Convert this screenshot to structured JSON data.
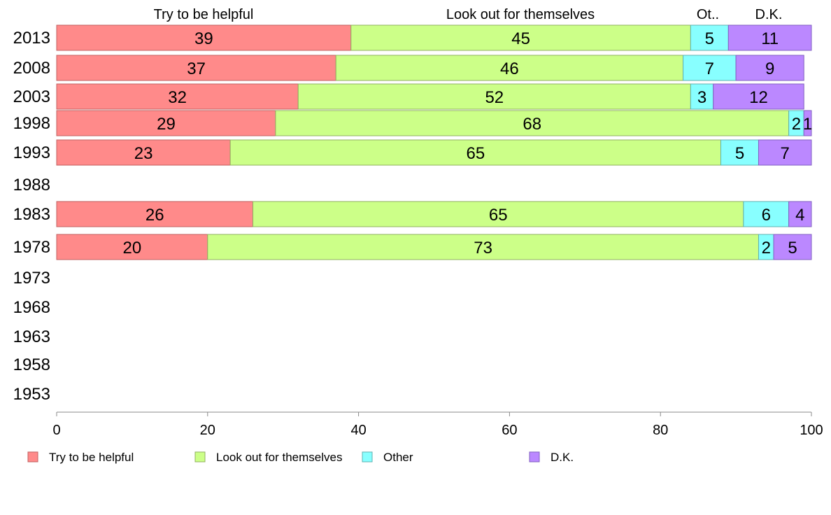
{
  "chart_data": {
    "type": "bar",
    "orientation": "horizontal",
    "stacked": true,
    "categories": [
      "2013",
      "2008",
      "2003",
      "1998",
      "1993",
      "1988",
      "1983",
      "1978",
      "1973",
      "1968",
      "1963",
      "1958",
      "1953"
    ],
    "series": [
      {
        "name": "Try to be helpful",
        "color": "#ff8a8a",
        "values": [
          39,
          37,
          32,
          29,
          23,
          null,
          26,
          20,
          null,
          null,
          null,
          null,
          null
        ]
      },
      {
        "name": "Look out for themselves",
        "color": "#ccff88",
        "values": [
          45,
          46,
          52,
          68,
          65,
          null,
          65,
          73,
          null,
          null,
          null,
          null,
          null
        ]
      },
      {
        "name": "Other",
        "color": "#88ffff",
        "values": [
          5,
          7,
          3,
          2,
          5,
          null,
          6,
          2,
          null,
          null,
          null,
          null,
          null
        ]
      },
      {
        "name": "D.K.",
        "color": "#bb88ff",
        "values": [
          11,
          9,
          12,
          1,
          7,
          null,
          4,
          5,
          null,
          null,
          null,
          null,
          null
        ]
      }
    ],
    "column_headers": [
      "Try to be helpful",
      "Look out for themselves",
      "Ot..",
      "D.K."
    ],
    "xlim": [
      0,
      100
    ],
    "xticks": [
      "0",
      "20",
      "40",
      "60",
      "80",
      "100"
    ],
    "grid": false,
    "legend_position": "bottom"
  }
}
